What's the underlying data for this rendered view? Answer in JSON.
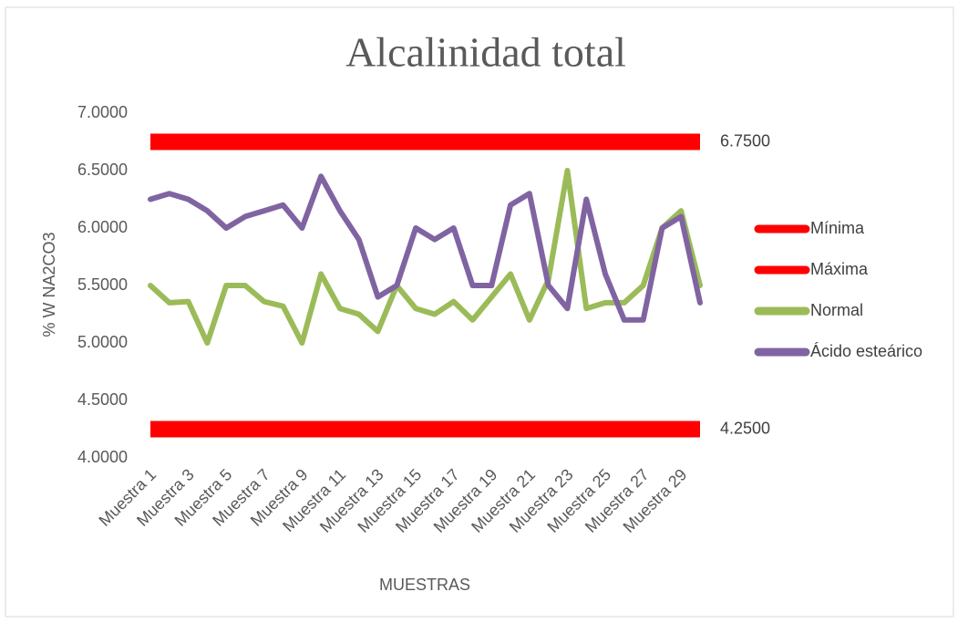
{
  "chart_data": {
    "type": "line",
    "title": "Alcalinidad total",
    "y_label": "% W NA2CO3",
    "x_label": "MUESTRAS",
    "categories": [
      "Muestra 1",
      null,
      "Muestra 3",
      null,
      "Muestra 5",
      null,
      "Muestra 7",
      null,
      "Muestra 9",
      null,
      "Muestra 11",
      null,
      "Muestra 13",
      null,
      "Muestra 15",
      null,
      "Muestra 17",
      null,
      "Muestra 19",
      null,
      "Muestra 21",
      null,
      "Muestra 23",
      null,
      "Muestra 25",
      null,
      "Muestra 27",
      null,
      "Muestra 29",
      null
    ],
    "series": [
      {
        "name": "Mínima",
        "color": "#ff0000",
        "values": [
          4.25,
          4.25,
          4.25,
          4.25,
          4.25,
          4.25,
          4.25,
          4.25,
          4.25,
          4.25,
          4.25,
          4.25,
          4.25,
          4.25,
          4.25,
          4.25,
          4.25,
          4.25,
          4.25,
          4.25,
          4.25,
          4.25,
          4.25,
          4.25,
          4.25,
          4.25,
          4.25,
          4.25,
          4.25,
          4.25
        ],
        "value_labels": [
          null,
          null,
          null,
          null,
          null,
          null,
          null,
          null,
          null,
          null,
          null,
          null,
          null,
          null,
          null,
          null,
          null,
          null,
          null,
          null,
          null,
          null,
          null,
          null,
          null,
          null,
          null,
          null,
          null,
          "4.2500"
        ]
      },
      {
        "name": "Máxima",
        "color": "#ff0000",
        "values": [
          6.75,
          6.75,
          6.75,
          6.75,
          6.75,
          6.75,
          6.75,
          6.75,
          6.75,
          6.75,
          6.75,
          6.75,
          6.75,
          6.75,
          6.75,
          6.75,
          6.75,
          6.75,
          6.75,
          6.75,
          6.75,
          6.75,
          6.75,
          6.75,
          6.75,
          6.75,
          6.75,
          6.75,
          6.75,
          6.75
        ],
        "value_labels": [
          null,
          null,
          null,
          null,
          null,
          null,
          null,
          null,
          null,
          null,
          null,
          null,
          null,
          null,
          null,
          null,
          null,
          null,
          null,
          null,
          null,
          null,
          null,
          null,
          null,
          null,
          null,
          null,
          null,
          "6.7500"
        ]
      },
      {
        "name": "Normal",
        "color": "#9bbb59",
        "values": [
          5.5,
          5.35,
          5.36,
          5.0,
          5.5,
          5.5,
          5.36,
          5.32,
          5.0,
          5.6,
          5.3,
          5.25,
          5.1,
          5.5,
          5.3,
          5.25,
          5.36,
          5.2,
          5.4,
          5.6,
          5.2,
          5.55,
          6.5,
          5.3,
          5.35,
          5.35,
          5.5,
          6.0,
          6.15,
          5.5
        ]
      },
      {
        "name": "Ácido esteárico",
        "color": "#8064a2",
        "values": [
          6.25,
          6.3,
          6.25,
          6.15,
          6.0,
          6.1,
          6.15,
          6.2,
          6.0,
          6.45,
          6.15,
          5.9,
          5.4,
          5.5,
          6.0,
          5.9,
          6.0,
          5.5,
          5.5,
          6.2,
          6.3,
          5.5,
          5.3,
          6.25,
          5.6,
          5.2,
          5.2,
          6.0,
          6.1,
          5.35
        ]
      }
    ],
    "ylim": [
      4.0,
      7.0
    ],
    "yticks": [
      {
        "value": 4.0,
        "label": "4.0000"
      },
      {
        "value": 4.5,
        "label": "4.5000"
      },
      {
        "value": 5.0,
        "label": "5.0000"
      },
      {
        "value": 5.5,
        "label": "5.5000"
      },
      {
        "value": 6.0,
        "label": "6.0000"
      },
      {
        "value": 6.5,
        "label": "6.5000"
      },
      {
        "value": 7.0,
        "label": "7.0000"
      }
    ],
    "grid": false,
    "legend": "right"
  }
}
